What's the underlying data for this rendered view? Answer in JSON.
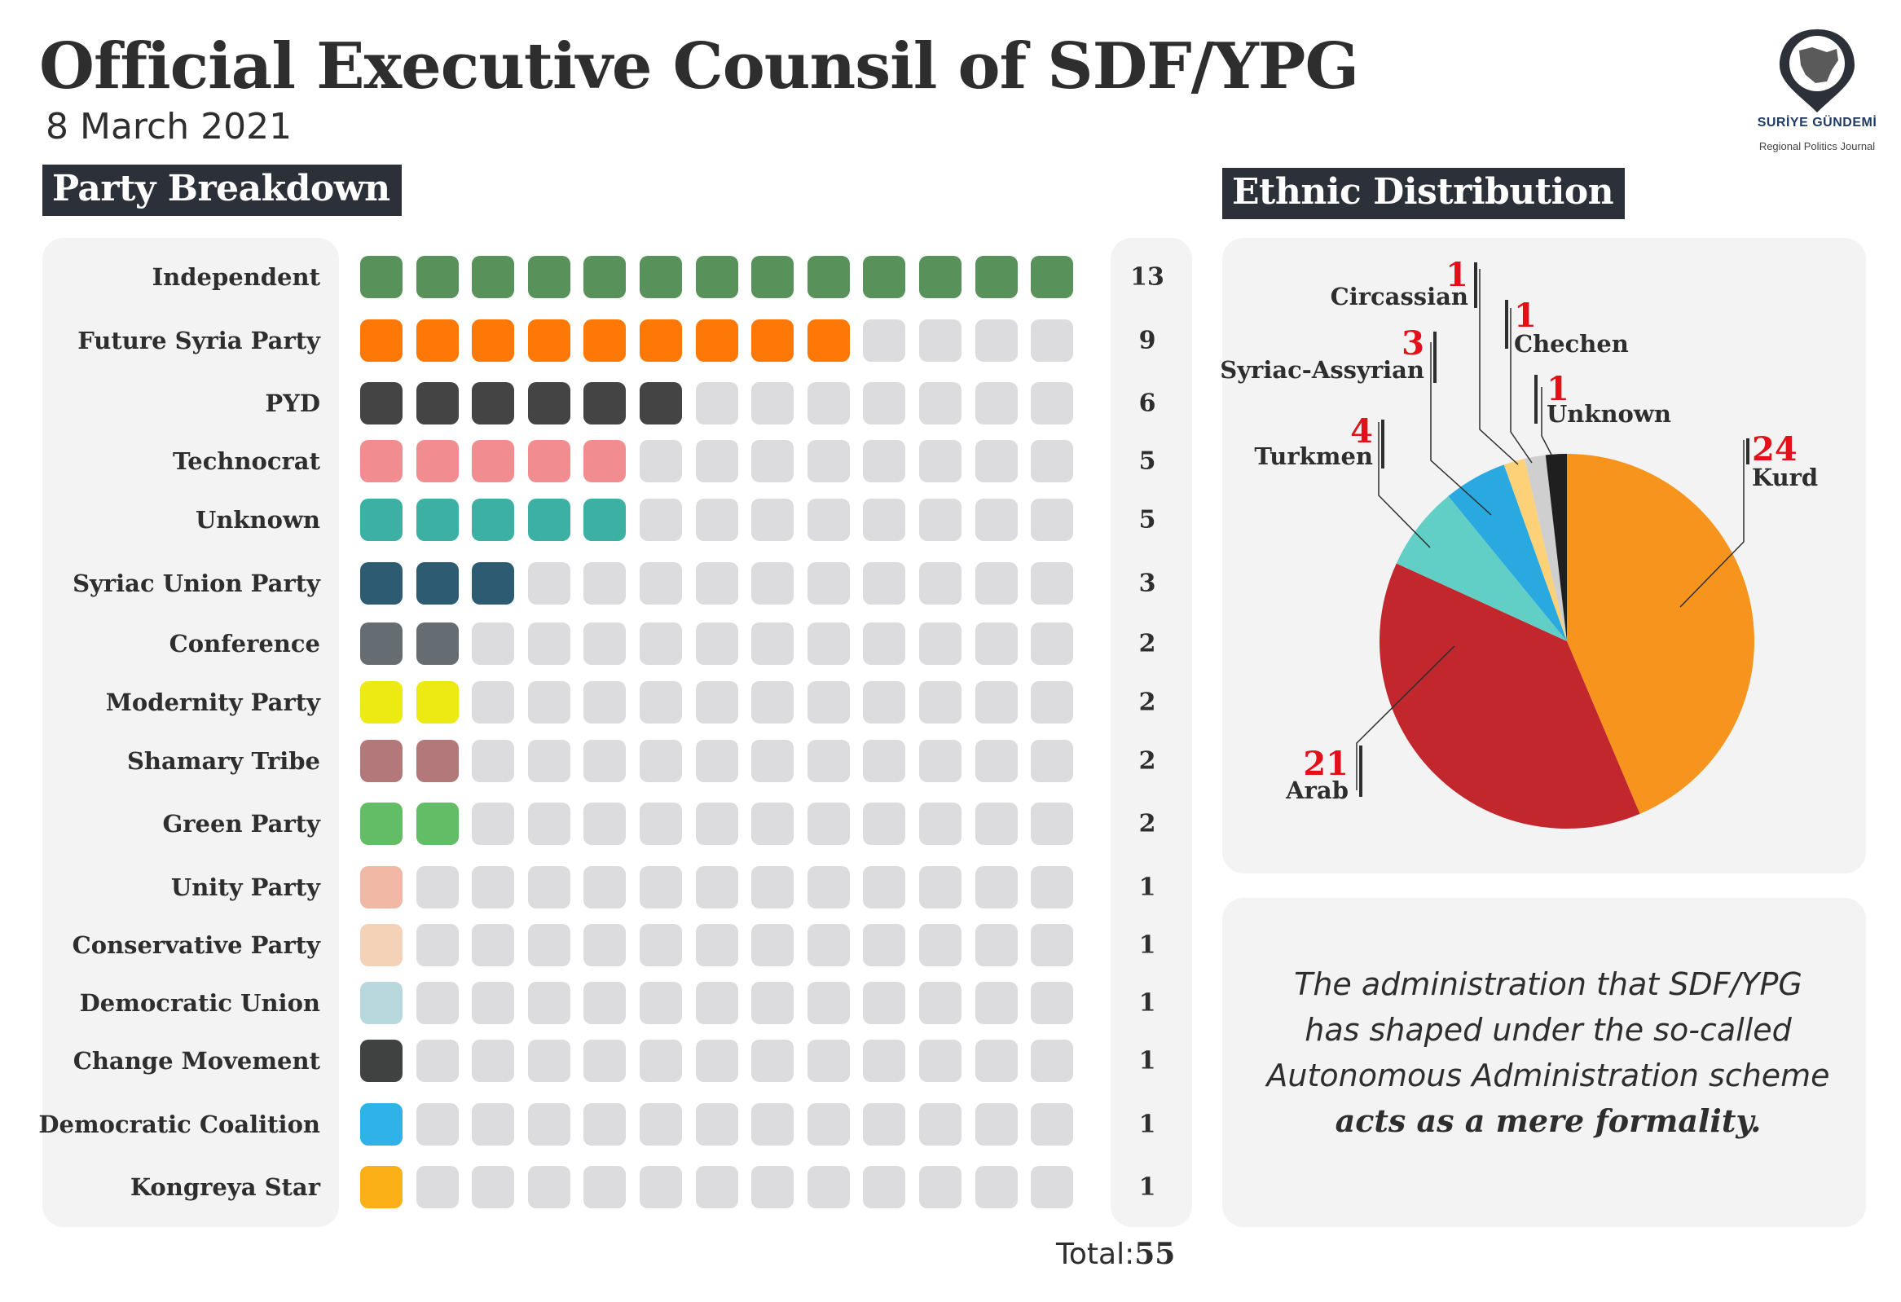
{
  "title": "Official Executive Counsil of SDF/YPG",
  "subtitle": "8 March 2021",
  "logo": {
    "brand": "SURİYE GÜNDEMİ",
    "tagline": "Regional Politics Journal"
  },
  "party_section": {
    "title": "Party Breakdown",
    "total_label": "Total:",
    "total_value": "55"
  },
  "ethnic_section": {
    "title": "Ethnic Distribution"
  },
  "quote": {
    "lines": [
      "The administration that SDF/YPG",
      "has shaped under the so-called",
      "Autonomous Administration scheme"
    ],
    "emphasis": "acts as a mere formality."
  },
  "colors": {
    "empty_square": "#dcdcde",
    "header_bg": "#2b3039",
    "accent_red": "#e3101a"
  },
  "chart_data": [
    {
      "type": "bar",
      "title": "Party Breakdown",
      "max_squares": 13,
      "categories": [
        "Independent",
        "Future Syria Party",
        "PYD",
        "Technocrat",
        "Unknown",
        "Syriac Union Party",
        "Conference",
        "Modernity Party",
        "Shamary Tribe",
        "Green Party",
        "Unity Party",
        "Conservative Party",
        "Democratic Union",
        "Change Movement",
        "Democratic Coalition",
        "Kongreya Star"
      ],
      "values": [
        13,
        9,
        6,
        5,
        5,
        3,
        2,
        2,
        2,
        2,
        1,
        1,
        1,
        1,
        1,
        1
      ],
      "colors": [
        "#58915a",
        "#fd7806",
        "#444444",
        "#f18d91",
        "#3bb0a3",
        "#2c5b72",
        "#656d72",
        "#ece913",
        "#b37879",
        "#63bd66",
        "#f2b8a6",
        "#f4d2b8",
        "#b8d8dd",
        "#404141",
        "#2eb2e8",
        "#fcb017"
      ],
      "total": 55
    },
    {
      "type": "pie",
      "title": "Ethnic Distribution",
      "labels": [
        "Kurd",
        "Arab",
        "Turkmen",
        "Syriac-Assyrian",
        "Circassian",
        "Chechen",
        "Unknown"
      ],
      "values": [
        24,
        21,
        4,
        3,
        1,
        1,
        1
      ],
      "colors": [
        "#f7941d",
        "#c1272d",
        "#62cfc6",
        "#29a9e0",
        "#fcd177",
        "#cfcfcf",
        "#1f1f1f"
      ]
    }
  ]
}
